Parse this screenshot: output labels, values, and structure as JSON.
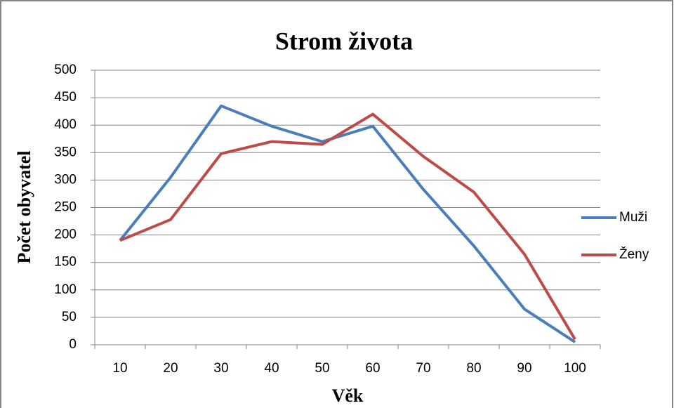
{
  "chart_data": {
    "type": "line",
    "title": "Strom života",
    "xlabel": "Věk",
    "ylabel": "Počet obyvatel",
    "categories": [
      "10",
      "20",
      "30",
      "40",
      "50",
      "60",
      "70",
      "80",
      "90",
      "100"
    ],
    "series": [
      {
        "name": "Muži",
        "color": "#4a7ebb",
        "values": [
          190,
          305,
          435,
          398,
          370,
          398,
          283,
          180,
          65,
          5
        ]
      },
      {
        "name": "Ženy",
        "color": "#be4b48",
        "values": [
          190,
          228,
          348,
          370,
          365,
          420,
          343,
          278,
          165,
          10
        ]
      }
    ],
    "ylim": [
      0,
      500
    ],
    "yticks": [
      0,
      50,
      100,
      150,
      200,
      250,
      300,
      350,
      400,
      450,
      500
    ],
    "grid": true,
    "legend": "right"
  }
}
